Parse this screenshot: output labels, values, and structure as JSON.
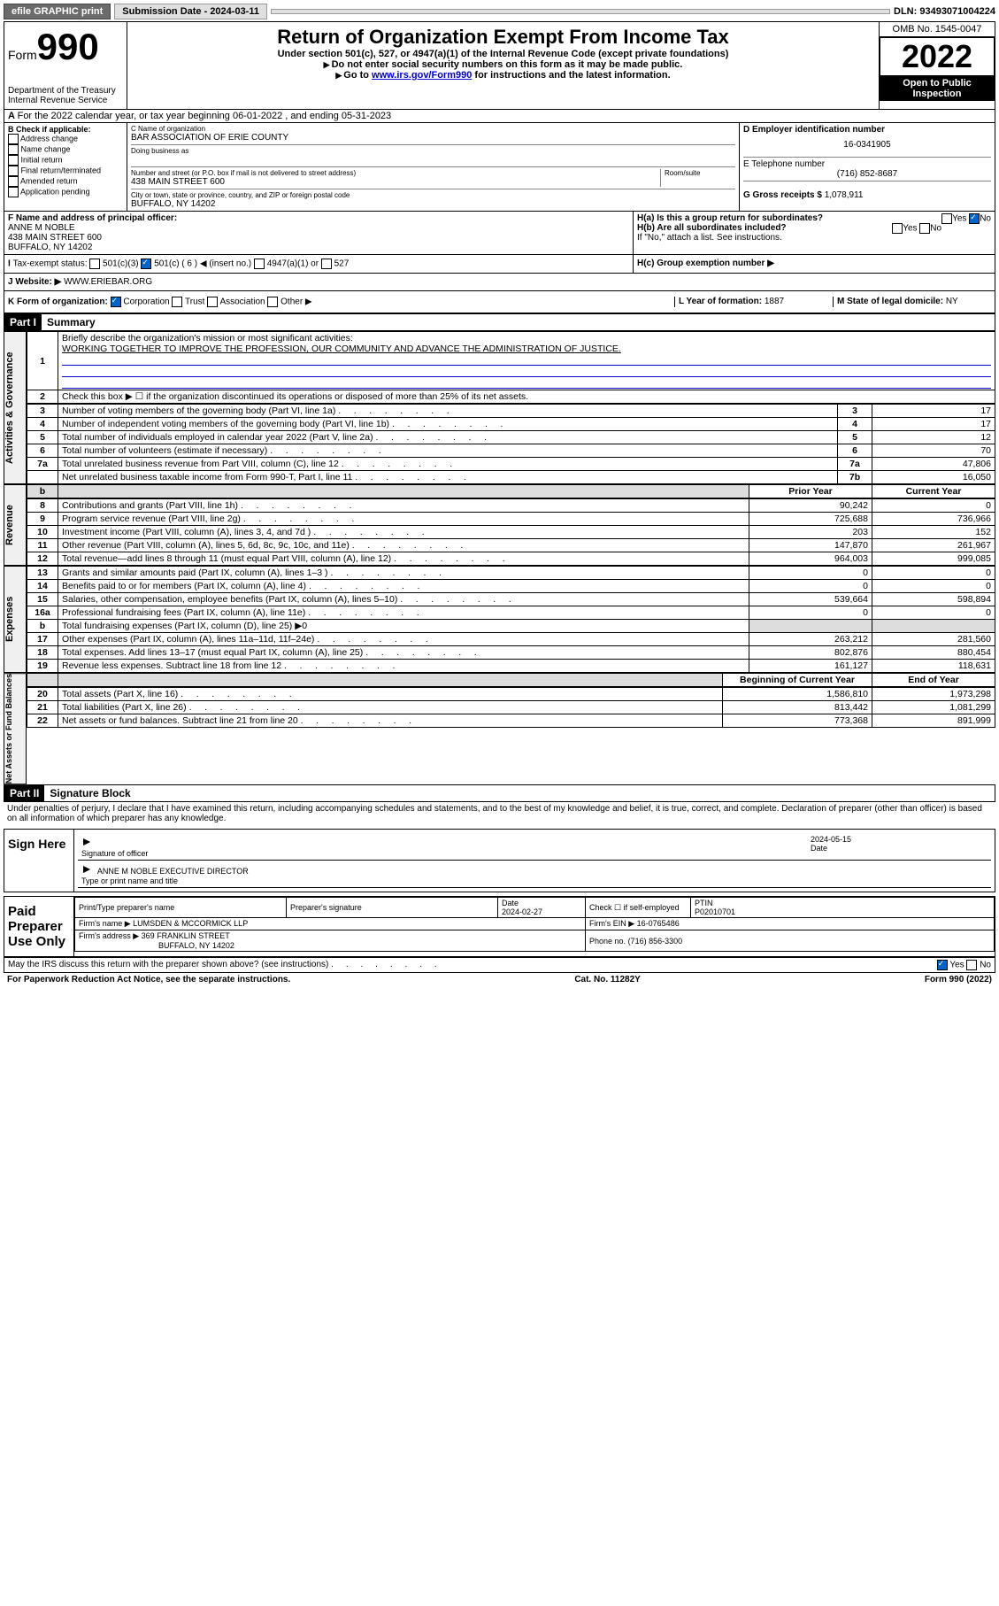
{
  "topbar": {
    "efile": "efile GRAPHIC print",
    "sub_label": "Submission Date - 2024-03-11",
    "dln": "DLN: 93493071004224"
  },
  "header": {
    "form_label": "Form",
    "form_number": "990",
    "dept": "Department of the Treasury\nInternal Revenue Service",
    "title": "Return of Organization Exempt From Income Tax",
    "subtitle": "Under section 501(c), 527, or 4947(a)(1) of the Internal Revenue Code (except private foundations)",
    "warn1": "Do not enter social security numbers on this form as it may be made public.",
    "warn2_pre": "Go to ",
    "warn2_link": "www.irs.gov/Form990",
    "warn2_post": " for instructions and the latest information.",
    "omb": "OMB No. 1545-0047",
    "year": "2022",
    "open": "Open to Public Inspection"
  },
  "lineA": "For the 2022 calendar year, or tax year beginning 06-01-2022    , and ending 05-31-2023",
  "boxB": {
    "label": "B Check if applicable:",
    "items": [
      "Address change",
      "Name change",
      "Initial return",
      "Final return/terminated",
      "Amended return",
      "Application pending"
    ]
  },
  "boxC": {
    "name_label": "C Name of organization",
    "name": "BAR ASSOCIATION OF ERIE COUNTY",
    "dba_label": "Doing business as",
    "street_label": "Number and street (or P.O. box if mail is not delivered to street address)",
    "room_label": "Room/suite",
    "street": "438 MAIN STREET 600",
    "city_label": "City or town, state or province, country, and ZIP or foreign postal code",
    "city": "BUFFALO, NY  14202"
  },
  "boxD": {
    "label": "D Employer identification number",
    "value": "16-0341905"
  },
  "boxE": {
    "label": "E Telephone number",
    "value": "(716) 852-8687"
  },
  "boxG": {
    "label": "G Gross receipts $",
    "value": "1,078,911"
  },
  "boxF": {
    "label": "F  Name and address of principal officer:",
    "name": "ANNE M NOBLE",
    "addr1": "438 MAIN STREET 600",
    "addr2": "BUFFALO, NY  14202"
  },
  "boxH": {
    "a_label": "H(a)  Is this a group return for subordinates?",
    "b_label": "H(b)  Are all subordinates included?",
    "b_note": "If \"No,\" attach a list. See instructions.",
    "c_label": "H(c)  Group exemption number ▶",
    "yes": "Yes",
    "no": "No"
  },
  "lineI": {
    "label": "Tax-exempt status:",
    "opts": [
      "501(c)(3)",
      "501(c) ( 6 ) ◀ (insert no.)",
      "4947(a)(1) or",
      "527"
    ]
  },
  "lineJ": {
    "label": "Website: ▶",
    "value": "WWW.ERIEBAR.ORG"
  },
  "lineK": {
    "label": "K Form of organization:",
    "opts": [
      "Corporation",
      "Trust",
      "Association",
      "Other ▶"
    ]
  },
  "lineL": {
    "label": "L Year of formation:",
    "value": "1887"
  },
  "lineM": {
    "label": "M State of legal domicile:",
    "value": "NY"
  },
  "part1": {
    "header": "Part I",
    "title": "Summary",
    "line1_label": "Briefly describe the organization's mission or most significant activities:",
    "line1_text": "WORKING TOGETHER TO IMPROVE THE PROFESSION, OUR COMMUNITY AND ADVANCE THE ADMINISTRATION OF JUSTICE.",
    "line2": "Check this box ▶ ☐  if the organization discontinued its operations or disposed of more than 25% of its net assets.",
    "governance_label": "Activities & Governance",
    "revenue_label": "Revenue",
    "expenses_label": "Expenses",
    "netassets_label": "Net Assets or Fund Balances",
    "rows_gov": [
      {
        "n": "3",
        "d": "Number of voting members of the governing body (Part VI, line 1a)",
        "l": "3",
        "v": "17"
      },
      {
        "n": "4",
        "d": "Number of independent voting members of the governing body (Part VI, line 1b)",
        "l": "4",
        "v": "17"
      },
      {
        "n": "5",
        "d": "Total number of individuals employed in calendar year 2022 (Part V, line 2a)",
        "l": "5",
        "v": "12"
      },
      {
        "n": "6",
        "d": "Total number of volunteers (estimate if necessary)",
        "l": "6",
        "v": "70"
      },
      {
        "n": "7a",
        "d": "Total unrelated business revenue from Part VIII, column (C), line 12",
        "l": "7a",
        "v": "47,806"
      },
      {
        "n": "",
        "d": "Net unrelated business taxable income from Form 990-T, Part I, line 11",
        "l": "7b",
        "v": "16,050"
      }
    ],
    "prior_label": "Prior Year",
    "current_label": "Current Year",
    "rows_rev": [
      {
        "n": "8",
        "d": "Contributions and grants (Part VIII, line 1h)",
        "p": "90,242",
        "c": "0"
      },
      {
        "n": "9",
        "d": "Program service revenue (Part VIII, line 2g)",
        "p": "725,688",
        "c": "736,966"
      },
      {
        "n": "10",
        "d": "Investment income (Part VIII, column (A), lines 3, 4, and 7d )",
        "p": "203",
        "c": "152"
      },
      {
        "n": "11",
        "d": "Other revenue (Part VIII, column (A), lines 5, 6d, 8c, 9c, 10c, and 11e)",
        "p": "147,870",
        "c": "261,967"
      },
      {
        "n": "12",
        "d": "Total revenue—add lines 8 through 11 (must equal Part VIII, column (A), line 12)",
        "p": "964,003",
        "c": "999,085"
      }
    ],
    "rows_exp": [
      {
        "n": "13",
        "d": "Grants and similar amounts paid (Part IX, column (A), lines 1–3 )",
        "p": "0",
        "c": "0"
      },
      {
        "n": "14",
        "d": "Benefits paid to or for members (Part IX, column (A), line 4)",
        "p": "0",
        "c": "0"
      },
      {
        "n": "15",
        "d": "Salaries, other compensation, employee benefits (Part IX, column (A), lines 5–10)",
        "p": "539,664",
        "c": "598,894"
      },
      {
        "n": "16a",
        "d": "Professional fundraising fees (Part IX, column (A), line 11e)",
        "p": "0",
        "c": "0"
      },
      {
        "n": "b",
        "d": "Total fundraising expenses (Part IX, column (D), line 25) ▶0",
        "p": "",
        "c": ""
      },
      {
        "n": "17",
        "d": "Other expenses (Part IX, column (A), lines 11a–11d, 11f–24e)",
        "p": "263,212",
        "c": "281,560"
      },
      {
        "n": "18",
        "d": "Total expenses. Add lines 13–17 (must equal Part IX, column (A), line 25)",
        "p": "802,876",
        "c": "880,454"
      },
      {
        "n": "19",
        "d": "Revenue less expenses. Subtract line 18 from line 12",
        "p": "161,127",
        "c": "118,631"
      }
    ],
    "begin_label": "Beginning of Current Year",
    "end_label": "End of Year",
    "rows_net": [
      {
        "n": "20",
        "d": "Total assets (Part X, line 16)",
        "p": "1,586,810",
        "c": "1,973,298"
      },
      {
        "n": "21",
        "d": "Total liabilities (Part X, line 26)",
        "p": "813,442",
        "c": "1,081,299"
      },
      {
        "n": "22",
        "d": "Net assets or fund balances. Subtract line 21 from line 20",
        "p": "773,368",
        "c": "891,999"
      }
    ]
  },
  "part2": {
    "header": "Part II",
    "title": "Signature Block",
    "decl": "Under penalties of perjury, I declare that I have examined this return, including accompanying schedules and statements, and to the best of my knowledge and belief, it is true, correct, and complete. Declaration of preparer (other than officer) is based on all information of which preparer has any knowledge.",
    "sign_here": "Sign Here",
    "sig_officer": "Signature of officer",
    "sig_date": "2024-05-15",
    "date_label": "Date",
    "sig_name": "ANNE M NOBLE  EXECUTIVE DIRECTOR",
    "sig_name_label": "Type or print name and title",
    "paid": "Paid Preparer Use Only",
    "prep_name_label": "Print/Type preparer's name",
    "prep_sig_label": "Preparer's signature",
    "prep_date": "2024-02-27",
    "prep_check": "Check ☐ if self-employed",
    "ptin_label": "PTIN",
    "ptin": "P02010701",
    "firm_name_label": "Firm's name     ▶",
    "firm_name": "LUMSDEN & MCCORMICK LLP",
    "firm_ein_label": "Firm's EIN ▶",
    "firm_ein": "16-0765486",
    "firm_addr_label": "Firm's address ▶",
    "firm_addr": "369 FRANKLIN STREET",
    "firm_city": "BUFFALO, NY  14202",
    "firm_phone_label": "Phone no.",
    "firm_phone": "(716) 856-3300",
    "may_irs": "May the IRS discuss this return with the preparer shown above? (see instructions)"
  },
  "footer": {
    "left": "For Paperwork Reduction Act Notice, see the separate instructions.",
    "center": "Cat. No. 11282Y",
    "right": "Form 990 (2022)"
  }
}
